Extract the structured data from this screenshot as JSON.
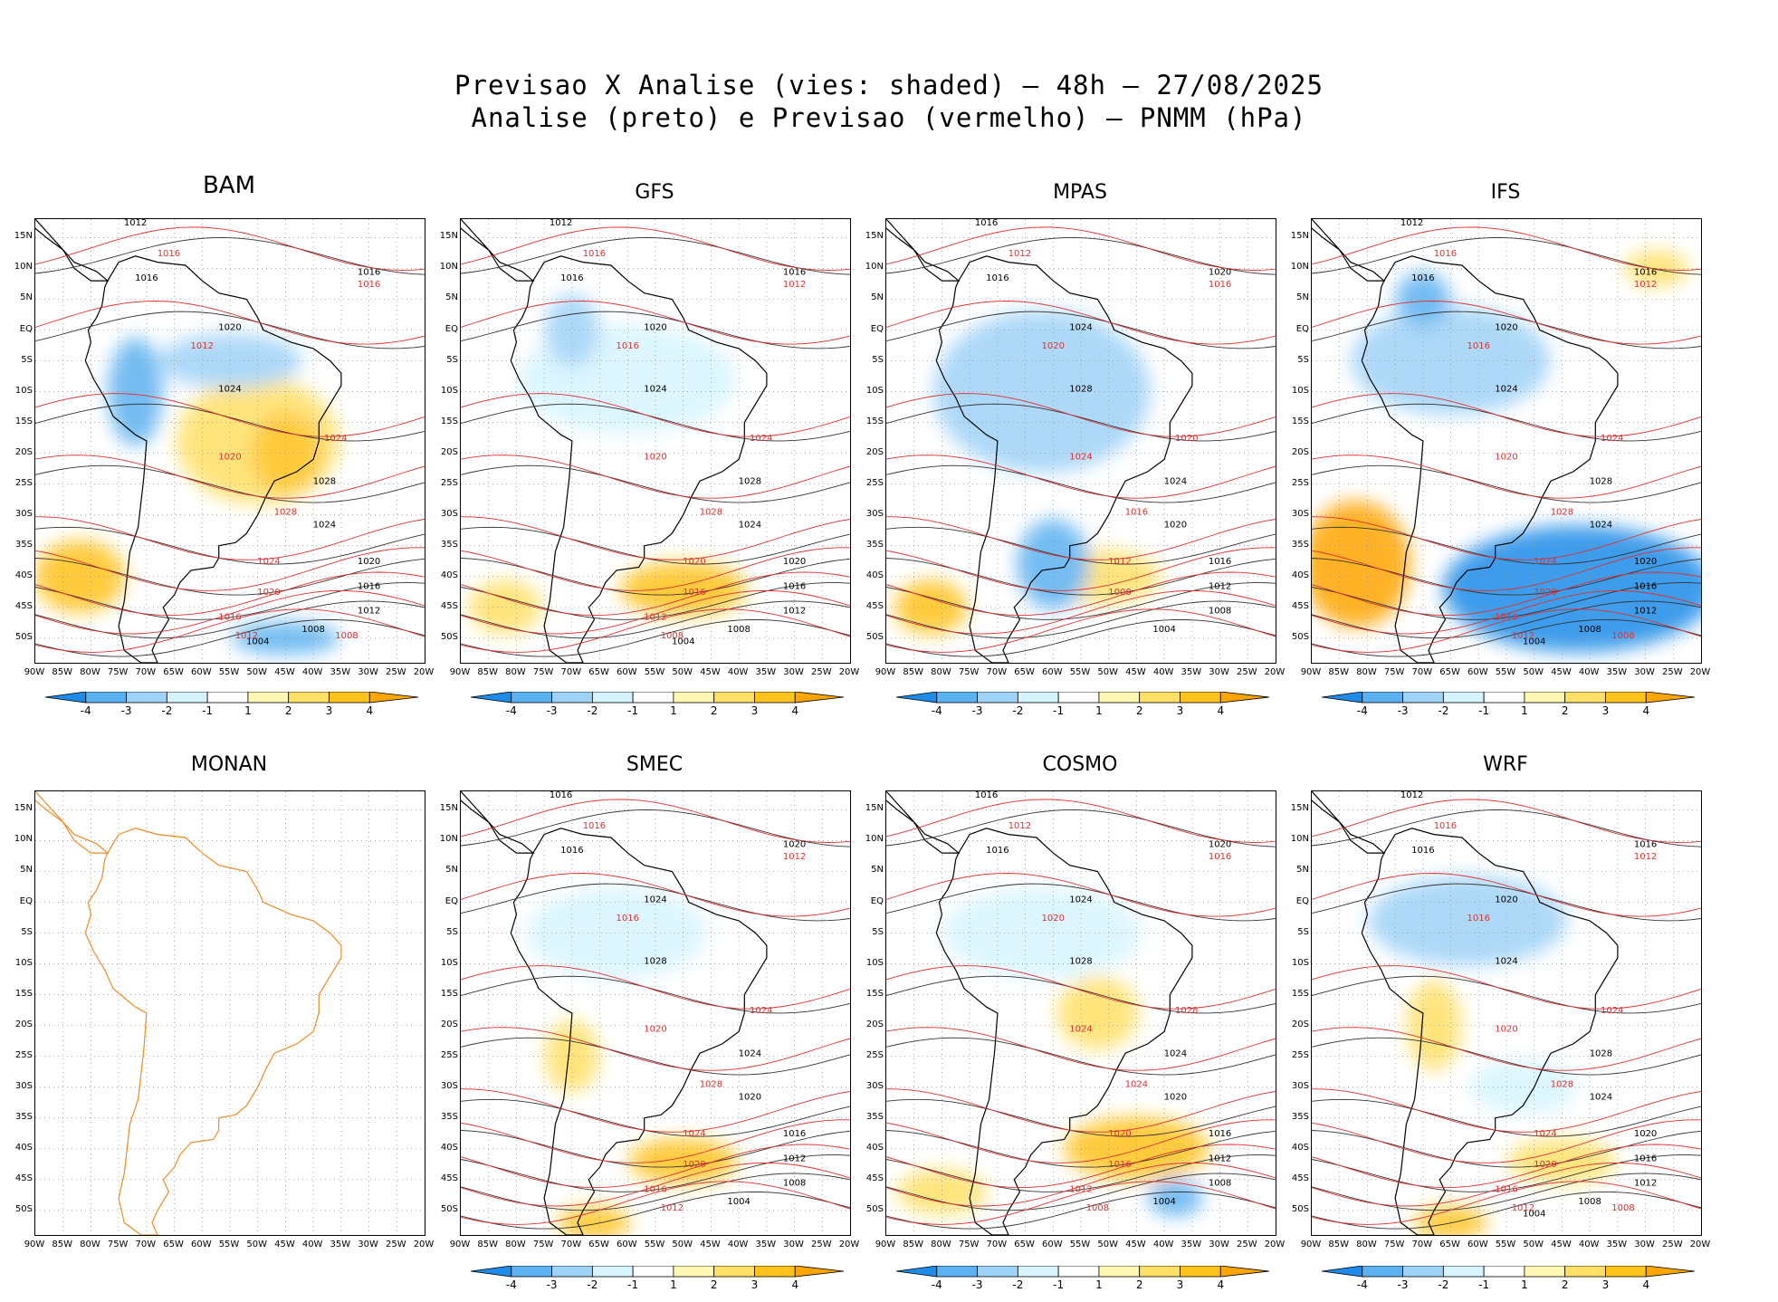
{
  "title": {
    "line1": "Previsao X Analise (vies: shaded) – 48h – 27/08/2025",
    "line2": "Analise (preto) e Previsao (vermelho) – PNMM (hPa)"
  },
  "axes": {
    "lat_labels": [
      "15N",
      "10N",
      "5N",
      "EQ",
      "5S",
      "10S",
      "15S",
      "20S",
      "25S",
      "30S",
      "35S",
      "40S",
      "45S",
      "50S"
    ],
    "lon_labels_a": [
      "90W",
      "85W",
      "80W",
      "75W",
      "70W",
      "65W",
      "60W",
      "55W",
      "50W",
      "45W",
      "40W",
      "35W",
      "30W",
      "25W",
      "20W"
    ],
    "lon_labels_wrf": [
      "90W",
      "85W",
      "80W",
      "75W",
      "70W",
      "65W",
      "60W",
      "55W",
      "50W",
      "45W",
      "40W",
      "35W",
      "30W",
      "25W",
      "20W"
    ]
  },
  "colorbar": {
    "labels": [
      "-4",
      "-3",
      "-2",
      "-1",
      "1",
      "2",
      "3",
      "4"
    ],
    "colors": [
      "#1e8be8",
      "#5cb1f0",
      "#9fd2f7",
      "#d6f4ff",
      "#ffffff",
      "#fff7b3",
      "#ffe066",
      "#ffc21a",
      "#ffa500"
    ]
  },
  "panels": [
    {
      "name": "BAM",
      "big": true,
      "analysis_labels": [
        "1012",
        "1016",
        "1016",
        "1020",
        "1024",
        "1028",
        "1024",
        "1020",
        "1016",
        "1012",
        "1008",
        "1004"
      ],
      "forecast_labels": [
        "1016",
        "1016",
        "1012",
        "1020",
        "1024",
        "1028",
        "1024",
        "1020",
        "1016",
        "1012",
        "1008"
      ]
    },
    {
      "name": "GFS",
      "big": false,
      "analysis_labels": [
        "1012",
        "1016",
        "1016",
        "1020",
        "1024",
        "1028",
        "1024",
        "1020",
        "1016",
        "1012",
        "1008",
        "1004"
      ],
      "forecast_labels": [
        "1016",
        "1012",
        "1016",
        "1020",
        "1024",
        "1028",
        "1020",
        "1016",
        "1012",
        "1008"
      ]
    },
    {
      "name": "MPAS",
      "big": false,
      "analysis_labels": [
        "1016",
        "1016",
        "1020",
        "1024",
        "1028",
        "1024",
        "1020",
        "1016",
        "1012",
        "1008",
        "1004"
      ],
      "forecast_labels": [
        "1012",
        "1016",
        "1020",
        "1024",
        "1020",
        "1016",
        "1012",
        "1008"
      ]
    },
    {
      "name": "IFS",
      "big": false,
      "analysis_labels": [
        "1012",
        "1016",
        "1016",
        "1020",
        "1024",
        "1028",
        "1024",
        "1020",
        "1016",
        "1012",
        "1008",
        "1004"
      ],
      "forecast_labels": [
        "1016",
        "1012",
        "1016",
        "1020",
        "1024",
        "1028",
        "1024",
        "1020",
        "1016",
        "1012",
        "1008"
      ]
    },
    {
      "name": "MONAN",
      "big": false,
      "analysis_labels": [],
      "forecast_labels": []
    },
    {
      "name": "SMEC",
      "big": false,
      "analysis_labels": [
        "1016",
        "1016",
        "1020",
        "1024",
        "1028",
        "1024",
        "1020",
        "1016",
        "1012",
        "1008",
        "1004"
      ],
      "forecast_labels": [
        "1016",
        "1012",
        "1016",
        "1020",
        "1024",
        "1028",
        "1024",
        "1020",
        "1016",
        "1012"
      ]
    },
    {
      "name": "COSMO",
      "big": false,
      "analysis_labels": [
        "1016",
        "1016",
        "1020",
        "1024",
        "1028",
        "1024",
        "1020",
        "1016",
        "1012",
        "1008",
        "1004"
      ],
      "forecast_labels": [
        "1012",
        "1016",
        "1020",
        "1024",
        "1028",
        "1024",
        "1020",
        "1016",
        "1012",
        "1008"
      ]
    },
    {
      "name": "WRF",
      "big": false,
      "analysis_labels": [
        "1012",
        "1016",
        "1016",
        "1020",
        "1024",
        "1028",
        "1024",
        "1020",
        "1016",
        "1012",
        "1008",
        "1004"
      ],
      "forecast_labels": [
        "1016",
        "1012",
        "1016",
        "1020",
        "1024",
        "1028",
        "1024",
        "1020",
        "1016",
        "1012",
        "1008"
      ]
    }
  ]
}
